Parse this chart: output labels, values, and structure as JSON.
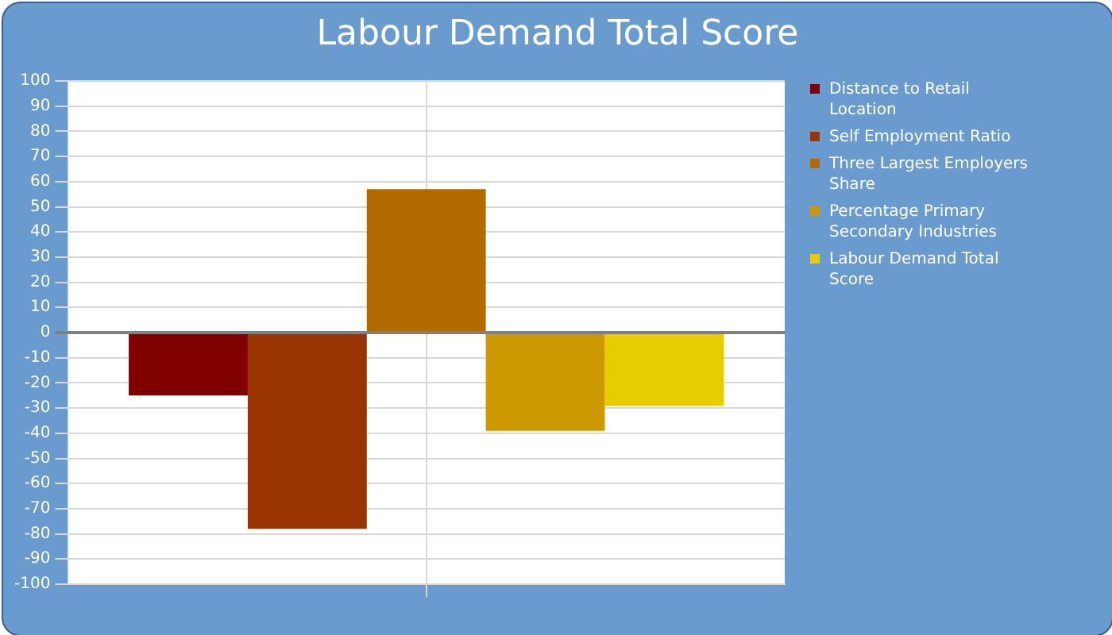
{
  "chart_data": {
    "type": "bar",
    "title": "Labour Demand Total Score",
    "categories": [
      null
    ],
    "series": [
      {
        "name": "Distance to Retail Location",
        "color": "#800000",
        "values": [
          -25
        ]
      },
      {
        "name": "Self Employment Ratio",
        "color": "#993300",
        "values": [
          -78
        ]
      },
      {
        "name": "Three Largest Employers Share",
        "color": "#b36b00",
        "values": [
          57
        ]
      },
      {
        "name": "Percentage Primary Secondary Industries",
        "color": "#cc9900",
        "values": [
          -39
        ]
      },
      {
        "name": "Labour Demand Total Score",
        "color": "#e6cc00",
        "values": [
          -29
        ]
      }
    ],
    "ylim": [
      -100,
      100
    ],
    "yticks": [
      -100,
      -90,
      -80,
      -70,
      -60,
      -50,
      -40,
      -30,
      -20,
      -10,
      0,
      10,
      20,
      30,
      40,
      50,
      60,
      70,
      80,
      90,
      100
    ],
    "grid": true,
    "legend": "right"
  }
}
